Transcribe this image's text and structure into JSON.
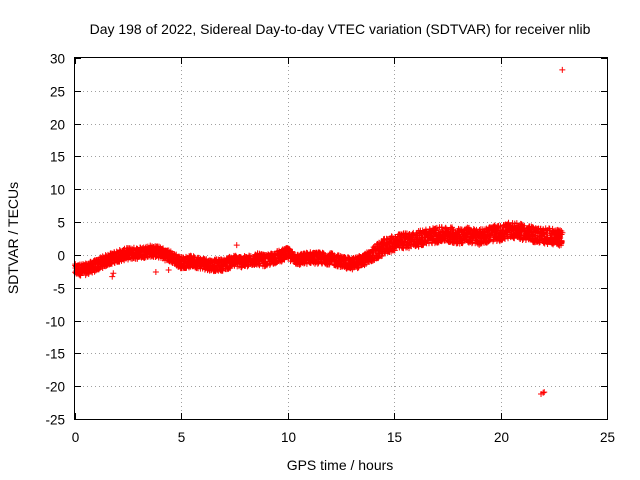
{
  "chart_data": {
    "type": "scatter",
    "title": "Day 198 of 2022, Sidereal Day-to-day VTEC variation (SDTVAR) for receiver nlib",
    "xlabel": "GPS time / hours",
    "ylabel": "SDTVAR / TECUs",
    "xlim": [
      0,
      25
    ],
    "ylim": [
      -25,
      30
    ],
    "xticks": [
      0,
      5,
      10,
      15,
      20,
      25
    ],
    "yticks": [
      -25,
      -20,
      -15,
      -10,
      -5,
      0,
      5,
      10,
      15,
      20,
      25,
      30
    ],
    "grid": true,
    "marker": "+",
    "color": "#ff0000",
    "series": [
      {
        "name": "SDTVAR",
        "trend": [
          [
            0.0,
            -2.3
          ],
          [
            0.5,
            -2.2
          ],
          [
            1.0,
            -1.6
          ],
          [
            1.5,
            -0.8
          ],
          [
            2.0,
            -0.2
          ],
          [
            2.5,
            0.2
          ],
          [
            3.0,
            0.3
          ],
          [
            3.5,
            0.6
          ],
          [
            4.0,
            0.4
          ],
          [
            4.5,
            -0.3
          ],
          [
            5.0,
            -1.2
          ],
          [
            5.5,
            -1.0
          ],
          [
            6.0,
            -1.3
          ],
          [
            6.5,
            -1.6
          ],
          [
            7.0,
            -1.5
          ],
          [
            7.5,
            -0.9
          ],
          [
            8.0,
            -1.1
          ],
          [
            8.5,
            -0.6
          ],
          [
            9.0,
            -0.9
          ],
          [
            9.5,
            -0.3
          ],
          [
            10.0,
            0.2
          ],
          [
            10.5,
            -0.8
          ],
          [
            11.0,
            -0.4
          ],
          [
            11.5,
            -0.5
          ],
          [
            12.0,
            -0.6
          ],
          [
            12.5,
            -1.0
          ],
          [
            13.0,
            -1.4
          ],
          [
            13.5,
            -0.9
          ],
          [
            14.0,
            0.0
          ],
          [
            14.5,
            1.2
          ],
          [
            15.0,
            1.8
          ],
          [
            15.5,
            2.2
          ],
          [
            16.0,
            2.3
          ],
          [
            16.5,
            2.8
          ],
          [
            17.0,
            3.0
          ],
          [
            17.5,
            3.1
          ],
          [
            18.0,
            2.9
          ],
          [
            18.5,
            3.0
          ],
          [
            19.0,
            2.7
          ],
          [
            19.5,
            3.2
          ],
          [
            20.0,
            3.3
          ],
          [
            20.5,
            3.8
          ],
          [
            21.0,
            3.5
          ],
          [
            21.5,
            3.1
          ],
          [
            22.0,
            2.9
          ],
          [
            22.5,
            2.8
          ],
          [
            22.9,
            2.5
          ]
        ],
        "outliers": [
          [
            22.9,
            28.2
          ],
          [
            22.0,
            -21.0
          ],
          [
            21.9,
            -21.2
          ],
          [
            22.05,
            -20.9
          ],
          [
            1.75,
            -3.3
          ],
          [
            1.8,
            -2.8
          ],
          [
            7.6,
            1.5
          ],
          [
            3.8,
            -2.6
          ],
          [
            4.4,
            -2.3
          ]
        ]
      }
    ]
  }
}
